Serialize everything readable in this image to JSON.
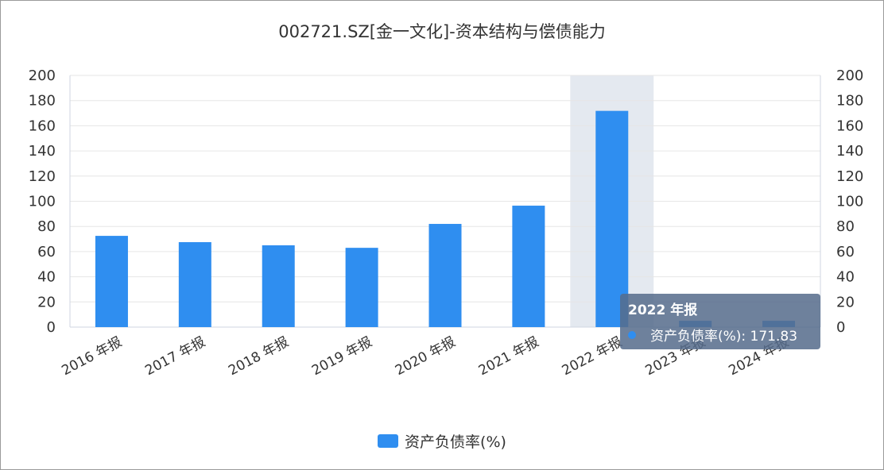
{
  "chart_data": {
    "type": "bar",
    "title": "002721.SZ[金一文化]-资本结构与偿债能力",
    "categories": [
      "2016 年报",
      "2017 年报",
      "2018 年报",
      "2019 年报",
      "2020 年报",
      "2021 年报",
      "2022 年报",
      "2023 年报",
      "2024 年报"
    ],
    "series": [
      {
        "name": "资产负债率(%)",
        "values": [
          72.5,
          67.5,
          65,
          63,
          82,
          96.5,
          171.83,
          5,
          5
        ]
      }
    ],
    "ylim": [
      0,
      200
    ],
    "yticks": [
      0,
      20,
      40,
      60,
      80,
      100,
      120,
      140,
      160,
      180,
      200
    ],
    "y2ticks": [
      0,
      20,
      40,
      60,
      80,
      100,
      120,
      140,
      160,
      180,
      200
    ],
    "grid": true,
    "legend_position": "bottom-center",
    "highlight_index": 6,
    "colors": {
      "bar": "#2f8ef0",
      "grid": "#e6e6e6",
      "highlight": "#e4e9f0"
    }
  },
  "tooltip": {
    "title": "2022 年报",
    "row_label": "资产负债率(%)",
    "row_value": "171.83",
    "row_text": "资产负债率(%): 171.83"
  }
}
